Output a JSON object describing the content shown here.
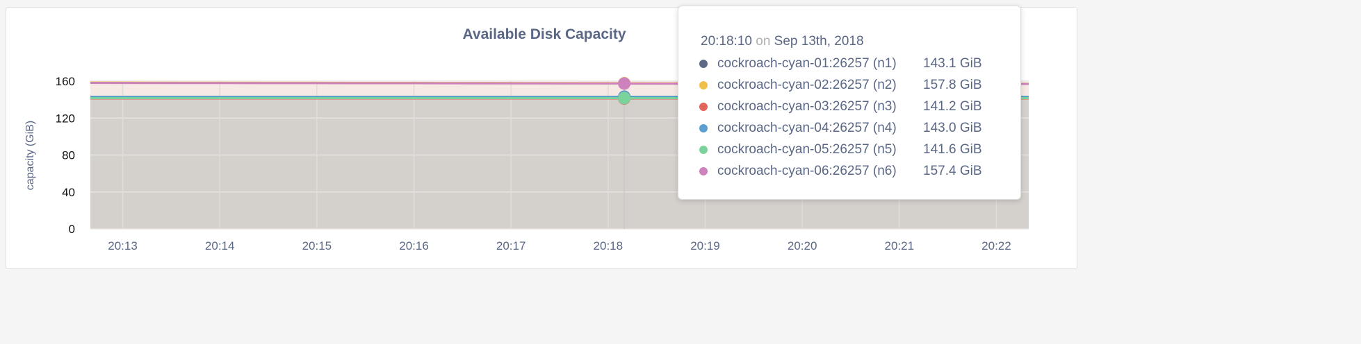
{
  "chart_data": {
    "type": "area",
    "title": "Available Disk Capacity",
    "xlabel": "",
    "ylabel": "capacity (GiB)",
    "ylim": [
      0,
      160
    ],
    "yticks": [
      0,
      40,
      80,
      120,
      160
    ],
    "xlim": [
      "20:12:40",
      "20:22:20"
    ],
    "xticks": [
      "20:13",
      "20:14",
      "20:15",
      "20:16",
      "20:17",
      "20:18",
      "20:19",
      "20:20",
      "20:21",
      "20:22"
    ],
    "grid": true,
    "x": [
      "20:12:40",
      "20:13",
      "20:14",
      "20:15",
      "20:16",
      "20:17",
      "20:18",
      "20:18:10",
      "20:19",
      "20:20",
      "20:21",
      "20:22",
      "20:22:20"
    ],
    "series": [
      {
        "name": "cockroach-cyan-01:26257 (n1)",
        "color": "#5e6a87",
        "values": [
          143.1,
          143.1,
          143.1,
          143.1,
          143.1,
          143.1,
          143.1,
          143.1,
          143.1,
          143.1,
          143.1,
          143.1,
          143.1
        ]
      },
      {
        "name": "cockroach-cyan-02:26257 (n2)",
        "color": "#f0c04a",
        "values": [
          158.5,
          158.4,
          158.3,
          158.2,
          158.1,
          158.0,
          157.9,
          157.8,
          157.7,
          157.6,
          157.5,
          157.4,
          157.4
        ]
      },
      {
        "name": "cockroach-cyan-03:26257 (n3)",
        "color": "#e2645a",
        "values": [
          141.2,
          141.2,
          141.2,
          141.2,
          141.2,
          141.2,
          141.2,
          141.2,
          141.2,
          141.2,
          141.2,
          141.2,
          141.2
        ]
      },
      {
        "name": "cockroach-cyan-04:26257 (n4)",
        "color": "#5ba0d0",
        "values": [
          143.0,
          143.0,
          143.0,
          143.0,
          143.0,
          143.0,
          143.0,
          143.0,
          143.0,
          143.0,
          143.0,
          143.0,
          143.0
        ]
      },
      {
        "name": "cockroach-cyan-05:26257 (n5)",
        "color": "#7ad39a",
        "values": [
          141.6,
          141.6,
          141.6,
          141.6,
          141.6,
          141.6,
          141.6,
          141.6,
          141.6,
          141.6,
          141.6,
          141.6,
          141.6
        ]
      },
      {
        "name": "cockroach-cyan-06:26257 (n6)",
        "color": "#cd81bd",
        "values": [
          158.1,
          158.0,
          157.9,
          157.8,
          157.7,
          157.6,
          157.5,
          157.4,
          157.3,
          157.2,
          157.1,
          157.0,
          157.0
        ]
      }
    ]
  },
  "tooltip": {
    "time": "20:18:10",
    "on": "on",
    "date": "Sep 13th, 2018",
    "hover_x": "20:18:10",
    "rows": [
      {
        "name": "cockroach-cyan-01:26257 (n1)",
        "value": "143.1 GiB"
      },
      {
        "name": "cockroach-cyan-02:26257 (n2)",
        "value": "157.8 GiB"
      },
      {
        "name": "cockroach-cyan-03:26257 (n3)",
        "value": "141.2 GiB"
      },
      {
        "name": "cockroach-cyan-04:26257 (n4)",
        "value": "143.0 GiB"
      },
      {
        "name": "cockroach-cyan-05:26257 (n5)",
        "value": "141.6 GiB"
      },
      {
        "name": "cockroach-cyan-06:26257 (n6)",
        "value": "157.4 GiB"
      }
    ]
  }
}
